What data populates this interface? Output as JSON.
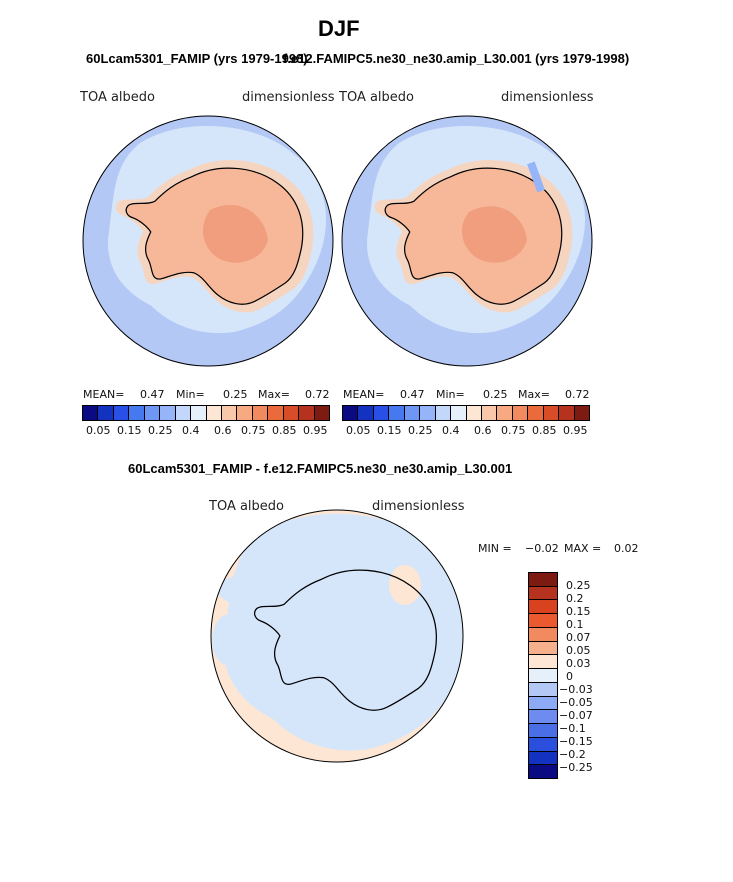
{
  "figure_title": "DJF",
  "subtitle_left": "60Lcam5301_FAMIP (yrs 1979-1998)",
  "subtitle_right": "f.e12.FAMIPC5.ne30_ne30.amip_L30.001 (yrs 1979-1998)",
  "diff_title": "60Lcam5301_FAMIP - f.e12.FAMIPC5.ne30_ne30.amip_L30.001",
  "chart_data": [
    {
      "type": "heatmap",
      "projection": "south polar stereographic",
      "case": "60Lcam5301_FAMIP",
      "variable": "TOA albedo",
      "units": "dimensionless",
      "stats": {
        "mean_label": "MEAN=",
        "mean": "0.47",
        "min_label": "Min=",
        "min": "0.25",
        "max_label": "Max=",
        "max": "0.72"
      },
      "colorbar_ticks": [
        "0.05",
        "0.15",
        "0.25",
        "0.4",
        "0.6",
        "0.75",
        "0.85",
        "0.95"
      ]
    },
    {
      "type": "heatmap",
      "projection": "south polar stereographic",
      "case": "f.e12.FAMIPC5.ne30_ne30.amip_L30.001",
      "variable": "TOA albedo",
      "units": "dimensionless",
      "stats": {
        "mean_label": "MEAN=",
        "mean": "0.47",
        "min_label": "Min=",
        "min": "0.25",
        "max_label": "Max=",
        "max": "0.72"
      },
      "colorbar_ticks": [
        "0.05",
        "0.15",
        "0.25",
        "0.4",
        "0.6",
        "0.75",
        "0.85",
        "0.95"
      ]
    },
    {
      "type": "heatmap",
      "projection": "south polar stereographic",
      "case": "difference",
      "variable": "TOA albedo",
      "units": "dimensionless",
      "stats": {
        "min_label": "MIN =",
        "min": "−0.02",
        "max_label": "MAX =",
        "max": "0.02"
      },
      "colorbar_ticks": [
        "0.25",
        "0.2",
        "0.15",
        "0.1",
        "0.07",
        "0.05",
        "0.03",
        "0",
        "−0.03",
        "−0.05",
        "−0.07",
        "−0.1",
        "−0.15",
        "−0.2",
        "−0.25"
      ]
    }
  ],
  "colors": {
    "ocean": "#b4c8f5",
    "ice_margin": "#f5d5c0",
    "pack_light": "#d6e6fa",
    "land": "#f7b89a",
    "plateau": "#f09e7e",
    "diff_bg": "#fde6d4",
    "diff_neg": "#d6e6fa",
    "palette_seq": [
      "#0a0a82",
      "#1432c0",
      "#2850e6",
      "#4678f0",
      "#6e96f5",
      "#96b4f8",
      "#c3d7fa",
      "#e6f0fa",
      "#fde6d4",
      "#f9c8aa",
      "#f7a982",
      "#f28a5f",
      "#eb6a3c",
      "#d84c28",
      "#b4321e",
      "#7d1a12"
    ],
    "palette_div": [
      "#7d1a12",
      "#b4321e",
      "#d8421e",
      "#eb5a2e",
      "#f28a5f",
      "#f7b08c",
      "#fde6d4",
      "#e6f0fa",
      "#b4c8f5",
      "#8caaf5",
      "#6e8cf0",
      "#4a6ee6",
      "#2a4fdc",
      "#1432c0",
      "#0a0a82"
    ]
  }
}
